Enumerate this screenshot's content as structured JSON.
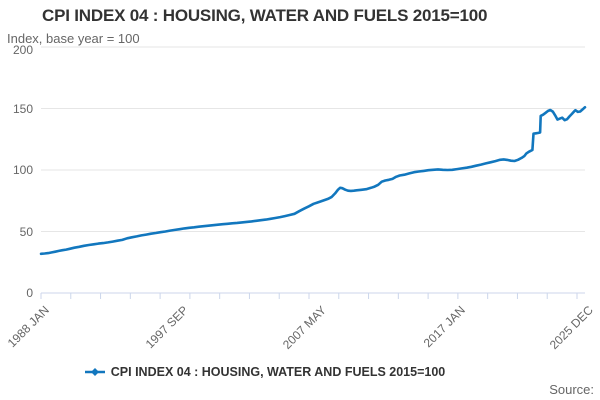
{
  "header": {
    "title": "CPI INDEX 04 : HOUSING, WATER AND FUELS 2015=100",
    "subtitle": "Index, base year = 100"
  },
  "footer": {
    "source_label": "Source:"
  },
  "legend": {
    "label": "CPI INDEX 04 : HOUSING, WATER AND FUELS 2015=100",
    "marker": "line-with-diamond-icon"
  },
  "colors": {
    "line": "#1277be",
    "grid": "#e6e6e6",
    "axis": "#ccd6eb",
    "muted_text": "#666666",
    "title_text": "#333333"
  },
  "chart_data": {
    "type": "line",
    "title": "CPI INDEX 04 : HOUSING, WATER AND FUELS 2015=100",
    "ylabel": "Index, base year = 100",
    "xlabel": "",
    "ylim": [
      0,
      200
    ],
    "yticks": [
      0,
      50,
      100,
      150,
      200
    ],
    "x_range": [
      1988.0,
      2025.917
    ],
    "x_tick_count": 19,
    "grid": "horizontal-only",
    "legend_position": "bottom",
    "xlabels": [
      {
        "label": "1988 JAN",
        "year": 1988.0
      },
      {
        "label": "1997 SEP",
        "year": 1997.667
      },
      {
        "label": "2007 MAY",
        "year": 2007.333
      },
      {
        "label": "2017 JAN",
        "year": 2017.0
      },
      {
        "label": "2025 DEC",
        "year": 2025.917
      }
    ],
    "series": [
      {
        "name": "CPI INDEX 04 : HOUSING, WATER AND FUELS 2015=100",
        "color": "#1277be",
        "points": [
          [
            1988.0,
            31.9
          ],
          [
            1988.25,
            32.1
          ],
          [
            1988.5,
            32.4
          ],
          [
            1988.75,
            33.0
          ],
          [
            1989.0,
            33.6
          ],
          [
            1989.25,
            34.2
          ],
          [
            1989.5,
            34.8
          ],
          [
            1989.75,
            35.3
          ],
          [
            1990.0,
            35.9
          ],
          [
            1990.33,
            36.8
          ],
          [
            1990.67,
            37.6
          ],
          [
            1991.0,
            38.4
          ],
          [
            1991.33,
            39.0
          ],
          [
            1991.67,
            39.6
          ],
          [
            1992.0,
            40.2
          ],
          [
            1992.33,
            40.6
          ],
          [
            1992.67,
            41.1
          ],
          [
            1993.0,
            41.8
          ],
          [
            1993.33,
            42.5
          ],
          [
            1993.67,
            43.2
          ],
          [
            1994.0,
            44.5
          ],
          [
            1994.33,
            45.3
          ],
          [
            1994.67,
            46.0
          ],
          [
            1995.0,
            46.8
          ],
          [
            1995.33,
            47.5
          ],
          [
            1995.67,
            48.2
          ],
          [
            1996.0,
            48.8
          ],
          [
            1996.33,
            49.4
          ],
          [
            1996.67,
            50.0
          ],
          [
            1997.0,
            50.7
          ],
          [
            1997.33,
            51.3
          ],
          [
            1997.67,
            51.9
          ],
          [
            1998.0,
            52.5
          ],
          [
            1998.33,
            53.0
          ],
          [
            1998.67,
            53.4
          ],
          [
            1999.0,
            53.9
          ],
          [
            1999.33,
            54.3
          ],
          [
            1999.67,
            54.7
          ],
          [
            2000.0,
            55.1
          ],
          [
            2000.33,
            55.5
          ],
          [
            2000.67,
            55.9
          ],
          [
            2001.0,
            56.3
          ],
          [
            2001.33,
            56.7
          ],
          [
            2001.67,
            57.0
          ],
          [
            2002.0,
            57.4
          ],
          [
            2002.33,
            57.8
          ],
          [
            2002.67,
            58.2
          ],
          [
            2003.0,
            58.7
          ],
          [
            2003.33,
            59.2
          ],
          [
            2003.67,
            59.7
          ],
          [
            2004.0,
            60.3
          ],
          [
            2004.33,
            61.0
          ],
          [
            2004.67,
            61.7
          ],
          [
            2005.0,
            62.5
          ],
          [
            2005.33,
            63.4
          ],
          [
            2005.67,
            64.4
          ],
          [
            2006.0,
            66.5
          ],
          [
            2006.33,
            68.5
          ],
          [
            2006.67,
            70.5
          ],
          [
            2007.0,
            72.5
          ],
          [
            2007.25,
            73.5
          ],
          [
            2007.5,
            74.5
          ],
          [
            2007.75,
            75.5
          ],
          [
            2008.0,
            76.5
          ],
          [
            2008.25,
            78.0
          ],
          [
            2008.5,
            81.0
          ],
          [
            2008.7,
            84.0
          ],
          [
            2008.85,
            85.5
          ],
          [
            2009.0,
            85.2
          ],
          [
            2009.2,
            84.0
          ],
          [
            2009.4,
            83.2
          ],
          [
            2009.6,
            83.0
          ],
          [
            2009.8,
            83.2
          ],
          [
            2010.0,
            83.5
          ],
          [
            2010.33,
            83.9
          ],
          [
            2010.67,
            84.4
          ],
          [
            2011.0,
            85.5
          ],
          [
            2011.25,
            86.5
          ],
          [
            2011.5,
            88.0
          ],
          [
            2011.75,
            90.5
          ],
          [
            2012.0,
            91.5
          ],
          [
            2012.25,
            92.0
          ],
          [
            2012.5,
            92.8
          ],
          [
            2012.75,
            94.5
          ],
          [
            2013.0,
            95.5
          ],
          [
            2013.33,
            96.2
          ],
          [
            2013.67,
            97.2
          ],
          [
            2014.0,
            98.2
          ],
          [
            2014.33,
            98.8
          ],
          [
            2014.67,
            99.3
          ],
          [
            2015.0,
            99.8
          ],
          [
            2015.33,
            100.2
          ],
          [
            2015.67,
            100.5
          ],
          [
            2016.0,
            100.2
          ],
          [
            2016.33,
            100.0
          ],
          [
            2016.67,
            100.2
          ],
          [
            2017.0,
            100.7
          ],
          [
            2017.33,
            101.3
          ],
          [
            2017.67,
            101.9
          ],
          [
            2018.0,
            102.6
          ],
          [
            2018.33,
            103.5
          ],
          [
            2018.67,
            104.4
          ],
          [
            2019.0,
            105.4
          ],
          [
            2019.33,
            106.3
          ],
          [
            2019.67,
            107.2
          ],
          [
            2020.0,
            108.3
          ],
          [
            2020.25,
            108.6
          ],
          [
            2020.5,
            108.2
          ],
          [
            2020.75,
            107.6
          ],
          [
            2021.0,
            107.3
          ],
          [
            2021.25,
            108.3
          ],
          [
            2021.5,
            109.8
          ],
          [
            2021.7,
            111.5
          ],
          [
            2021.83,
            113.5
          ],
          [
            2022.0,
            114.8
          ],
          [
            2022.17,
            115.8
          ],
          [
            2022.25,
            116.3
          ],
          [
            2022.33,
            129.5
          ],
          [
            2022.5,
            129.8
          ],
          [
            2022.67,
            130.2
          ],
          [
            2022.79,
            130.5
          ],
          [
            2022.83,
            144.0
          ],
          [
            2023.0,
            145.0
          ],
          [
            2023.17,
            146.5
          ],
          [
            2023.33,
            148.0
          ],
          [
            2023.5,
            148.8
          ],
          [
            2023.67,
            147.5
          ],
          [
            2023.83,
            144.5
          ],
          [
            2024.0,
            141.0
          ],
          [
            2024.17,
            141.8
          ],
          [
            2024.33,
            142.5
          ],
          [
            2024.5,
            140.5
          ],
          [
            2024.67,
            141.3
          ],
          [
            2024.83,
            143.5
          ],
          [
            2025.0,
            145.5
          ],
          [
            2025.17,
            147.8
          ],
          [
            2025.25,
            148.6
          ],
          [
            2025.42,
            147.2
          ],
          [
            2025.58,
            147.6
          ],
          [
            2025.75,
            149.3
          ],
          [
            2025.83,
            150.2
          ],
          [
            2025.92,
            151.0
          ]
        ]
      }
    ]
  }
}
